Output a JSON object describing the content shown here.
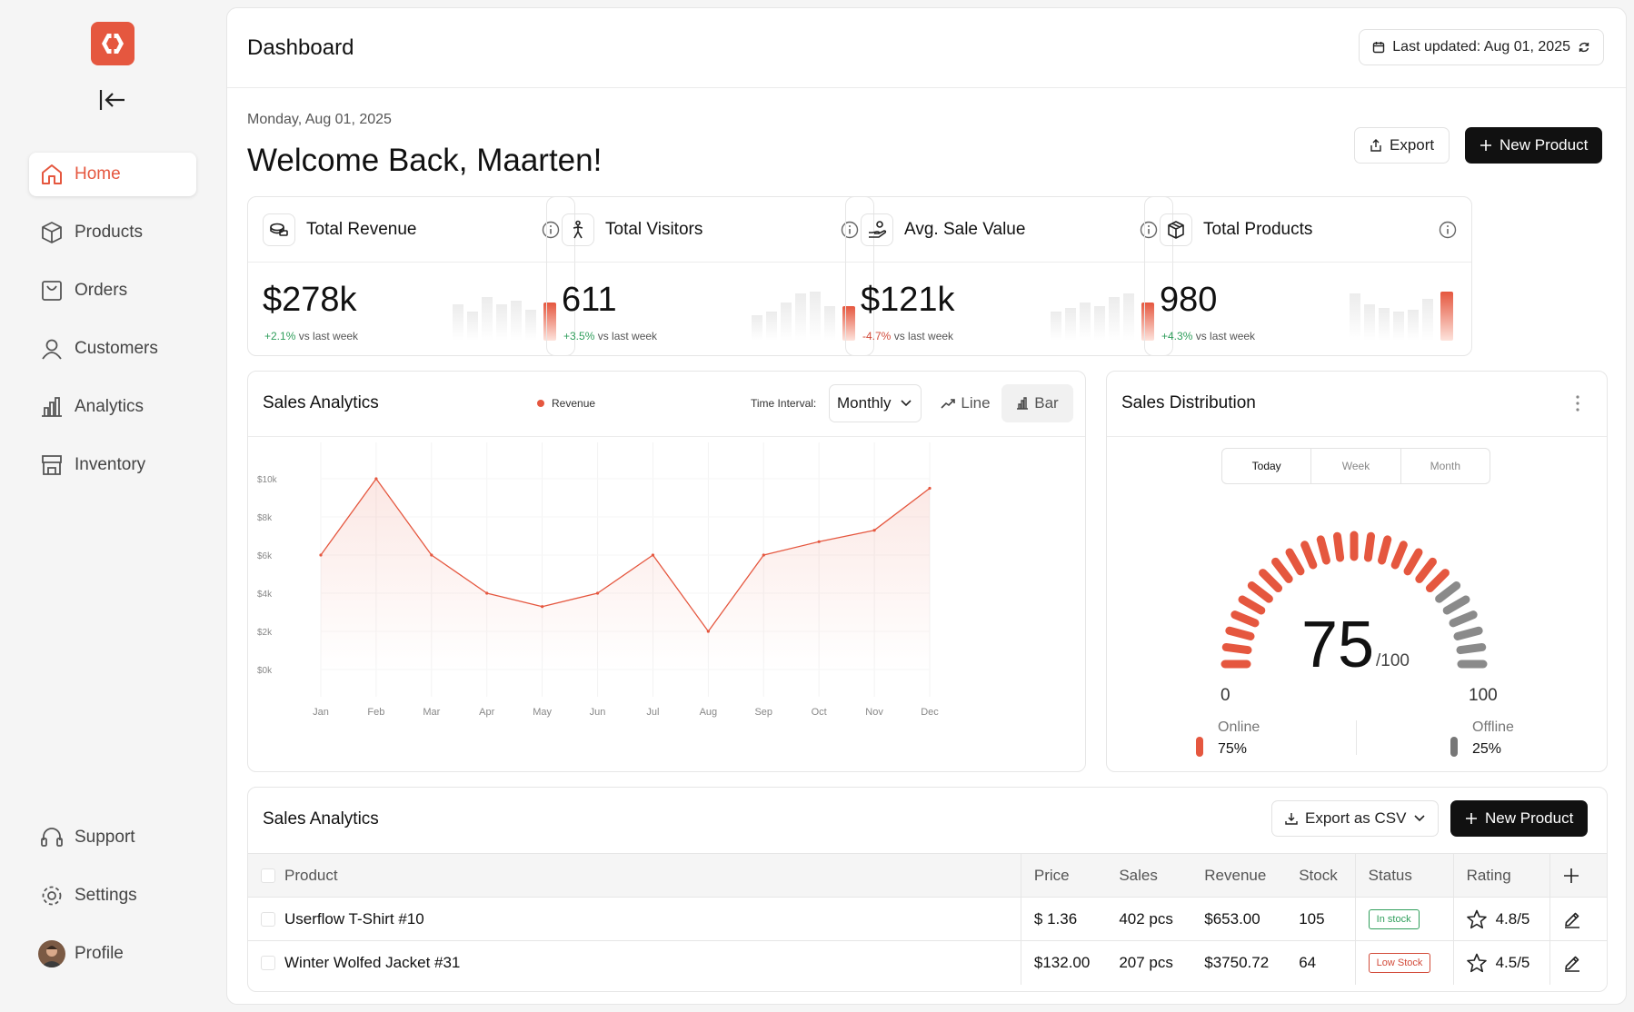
{
  "app": {
    "brand_color": "#e5573f"
  },
  "sidebar": {
    "items": [
      {
        "label": "Home",
        "icon": "home-icon",
        "active": true
      },
      {
        "label": "Products",
        "icon": "box-icon"
      },
      {
        "label": "Orders",
        "icon": "shopping-bag-icon"
      },
      {
        "label": "Customers",
        "icon": "user-icon"
      },
      {
        "label": "Analytics",
        "icon": "bar-chart-icon"
      },
      {
        "label": "Inventory",
        "icon": "store-icon"
      }
    ],
    "bottom": [
      {
        "label": "Support",
        "icon": "headset-icon"
      },
      {
        "label": "Settings",
        "icon": "gear-icon"
      },
      {
        "label": "Profile",
        "icon": "avatar"
      }
    ]
  },
  "header": {
    "title": "Dashboard",
    "last_updated": "Last updated: Aug 01, 2025"
  },
  "hero": {
    "date": "Monday, Aug 01, 2025",
    "welcome": "Welcome Back, Maarten!",
    "export_label": "Export",
    "new_product_label": "New Product"
  },
  "kpis": [
    {
      "title": "Total Revenue",
      "value": "$278k",
      "delta": "+2.1%",
      "delta_suffix": "vs last week",
      "trend": "up"
    },
    {
      "title": "Total Visitors",
      "value": "611",
      "delta": "+3.5%",
      "delta_suffix": "vs last week",
      "trend": "up"
    },
    {
      "title": "Avg. Sale Value",
      "value": "$121k",
      "delta": "-4.7%",
      "delta_suffix": "vs last week",
      "trend": "down"
    },
    {
      "title": "Total Products",
      "value": "980",
      "delta": "+4.3%",
      "delta_suffix": "vs last week",
      "trend": "up"
    }
  ],
  "sales_analytics": {
    "title": "Sales Analytics",
    "legend": "Revenue",
    "time_interval_label": "Time Interval:",
    "interval": "Monthly",
    "line_label": "Line",
    "bar_label": "Bar"
  },
  "chart_data": {
    "type": "area",
    "categories": [
      "Jan",
      "Feb",
      "Mar",
      "Apr",
      "May",
      "Jun",
      "Jul",
      "Aug",
      "Sep",
      "Oct",
      "Nov",
      "Dec"
    ],
    "series": [
      {
        "name": "Revenue",
        "values": [
          6000,
          10000,
          6000,
          4000,
          3300,
          4000,
          6000,
          2000,
          6000,
          6700,
          7300,
          9500
        ]
      }
    ],
    "y_ticks": [
      "$10k",
      "$8k",
      "$6k",
      "$4k",
      "$2k",
      "$0k"
    ],
    "ylim": [
      0,
      10000
    ],
    "color": "#e5573f"
  },
  "distribution": {
    "title": "Sales Distribution",
    "tabs": [
      "Today",
      "Week",
      "Month"
    ],
    "active_tab": "Today",
    "score": "75",
    "score_max": "/100",
    "score_fraction": 0.75,
    "min_label": "0",
    "max_label": "100",
    "online_label": "Online",
    "online_value": "75%",
    "offline_label": "Offline",
    "offline_value": "25%"
  },
  "table": {
    "title": "Sales Analytics",
    "export_label": "Export as CSV",
    "new_product_label": "New Product",
    "columns": [
      "Product",
      "Price",
      "Sales",
      "Revenue",
      "Stock",
      "Status",
      "Rating"
    ],
    "rows": [
      {
        "product": "Userflow T-Shirt #10",
        "price": "$ 1.36",
        "sales": "402 pcs",
        "revenue": "$653.00",
        "stock": "105",
        "status": "In stock",
        "rating": "4.8/5"
      },
      {
        "product": "Winter Wolfed Jacket #31",
        "price": "$132.00",
        "sales": "207 pcs",
        "revenue": "$3750.72",
        "stock": "64",
        "status": "Low Stock",
        "rating": "4.5/5"
      }
    ]
  }
}
